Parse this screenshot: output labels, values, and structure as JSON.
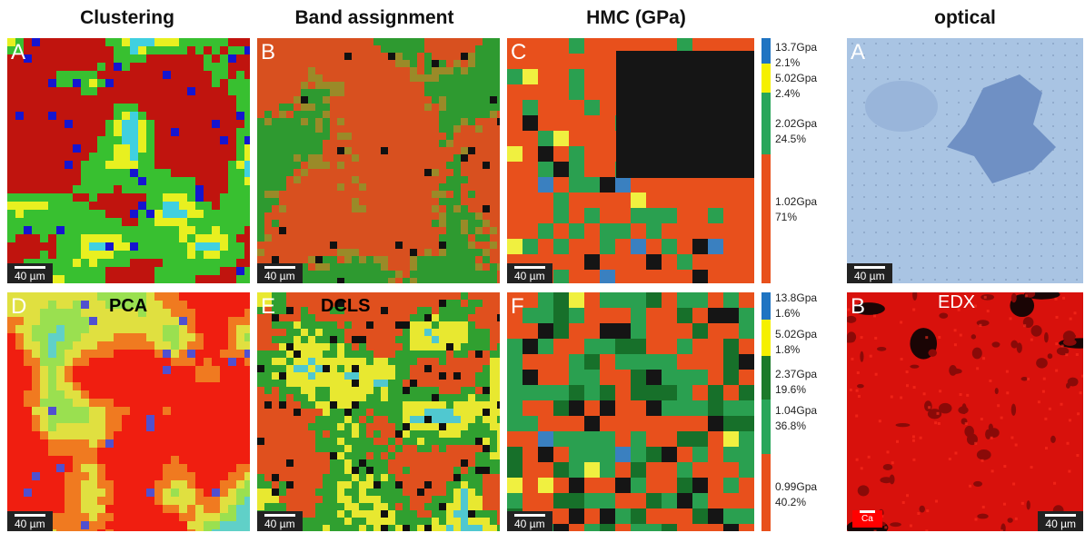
{
  "columns": [
    "Clustering",
    "Band assignment",
    "HMC (GPa)",
    "optical"
  ],
  "panels": [
    {
      "letter": "A",
      "scale": "40 µm"
    },
    {
      "letter": "B",
      "scale": "40 µm"
    },
    {
      "letter": "C",
      "scale": "40 µm"
    },
    {
      "letter": "A",
      "scale": "40 µm"
    },
    {
      "letter": "D",
      "tag": "PCA",
      "scale": "40 µm"
    },
    {
      "letter": "E",
      "tag": "DCLS",
      "scale": "40 µm"
    },
    {
      "letter": "F",
      "scale": "40 µm"
    },
    {
      "letter": "B",
      "tag": "EDX",
      "scale": "40 µm",
      "element": "Ca"
    }
  ],
  "legends": [
    [
      {
        "label": "13.7Gpa",
        "share": "2.1%"
      },
      {
        "label": "5.02Gpa",
        "share": "2.4%"
      },
      {
        "label": "2.02Gpa",
        "share": "24.5%"
      },
      {
        "label": "1.02Gpa",
        "share": "71%"
      }
    ],
    [
      {
        "label": "13.8Gpa",
        "share": "1.6%"
      },
      {
        "label": "5.02Gpa",
        "share": "1.8%"
      },
      {
        "label": "2.37Gpa",
        "share": "19.6%"
      },
      {
        "label": "1.04Gpa",
        "share": "36.8%"
      },
      {
        "label": "0.99Gpa",
        "share": "40.2%"
      }
    ]
  ]
}
